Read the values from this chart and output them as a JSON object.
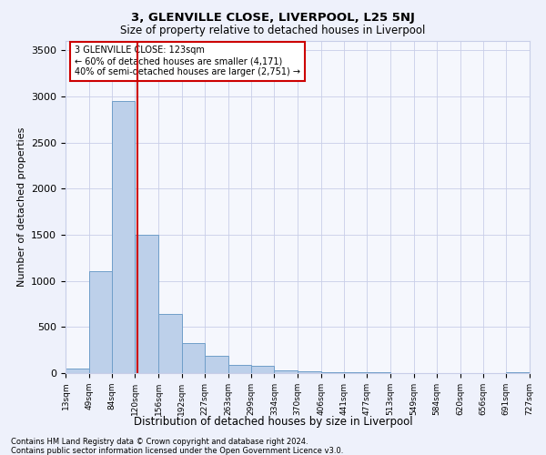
{
  "title1": "3, GLENVILLE CLOSE, LIVERPOOL, L25 5NJ",
  "title2": "Size of property relative to detached houses in Liverpool",
  "xlabel": "Distribution of detached houses by size in Liverpool",
  "ylabel": "Number of detached properties",
  "annotation_line1": "3 GLENVILLE CLOSE: 123sqm",
  "annotation_line2": "← 60% of detached houses are smaller (4,171)",
  "annotation_line3": "40% of semi-detached houses are larger (2,751) →",
  "property_size_sqm": 123,
  "bin_edges": [
    13,
    49,
    84,
    120,
    156,
    192,
    227,
    263,
    299,
    334,
    370,
    406,
    441,
    477,
    513,
    549,
    584,
    620,
    656,
    691,
    727
  ],
  "bar_heights": [
    50,
    1100,
    2950,
    1500,
    640,
    330,
    185,
    90,
    75,
    30,
    20,
    10,
    8,
    5,
    4,
    3,
    2,
    1,
    1,
    10
  ],
  "bar_color": "#bdd0ea",
  "bar_edge_color": "#6f9ec9",
  "vline_color": "#cc0000",
  "vline_x": 123,
  "ylim": [
    0,
    3600
  ],
  "yticks": [
    0,
    500,
    1000,
    1500,
    2000,
    2500,
    3000,
    3500
  ],
  "footer1": "Contains HM Land Registry data © Crown copyright and database right 2024.",
  "footer2": "Contains public sector information licensed under the Open Government Licence v3.0.",
  "bg_color": "#eef1fb",
  "plot_bg_color": "#f5f7fd",
  "grid_color": "#c8cee8"
}
